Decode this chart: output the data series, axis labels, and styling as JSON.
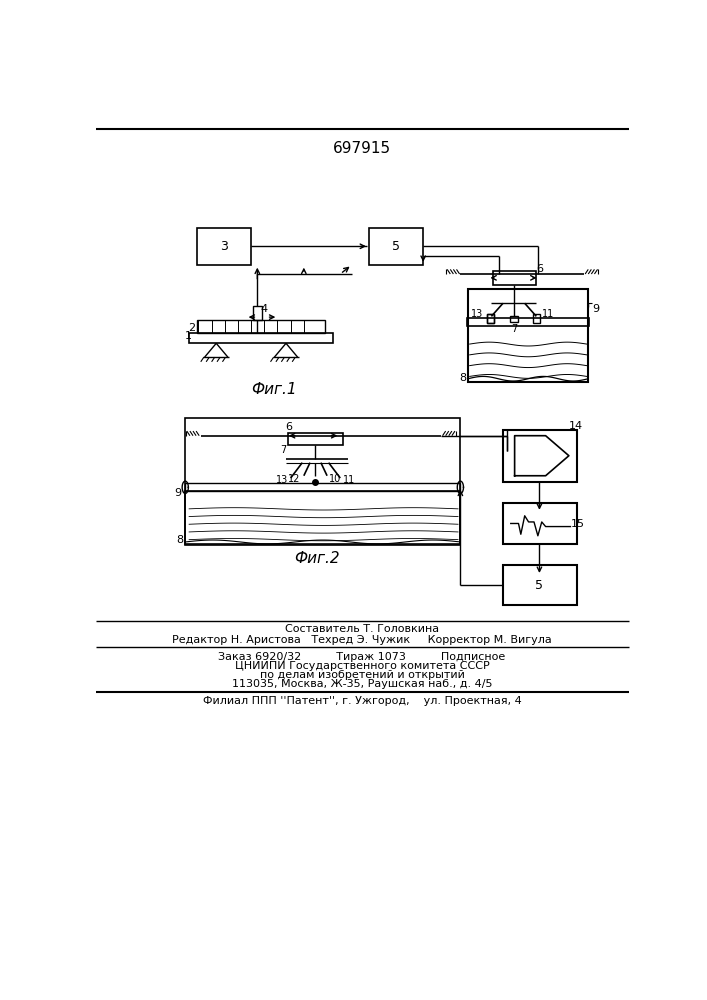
{
  "patent_number": "697915",
  "fig1_label": "Фиг.1",
  "fig2_label": "Фиг.2",
  "footer_line1": "Составитель Т. Головкина",
  "footer_line2": "Редактор Н. Аристова   Техред Э. Чужик     Корректор М. Вигула",
  "footer_line3": "Заказ 6920/32          Тираж 1073          Подписное",
  "footer_line4": "ЦНИИПИ Государственного комитета СССР",
  "footer_line5": "по делам изобретений и открытий",
  "footer_line6": "113035, Москва, Ж-35, Раушская наб., д. 4/5",
  "footer_line7": "Филиал ППП ''Патент'', г. Ужгород,    ул. Проектная, 4",
  "bg_color": "#ffffff",
  "line_color": "#000000"
}
